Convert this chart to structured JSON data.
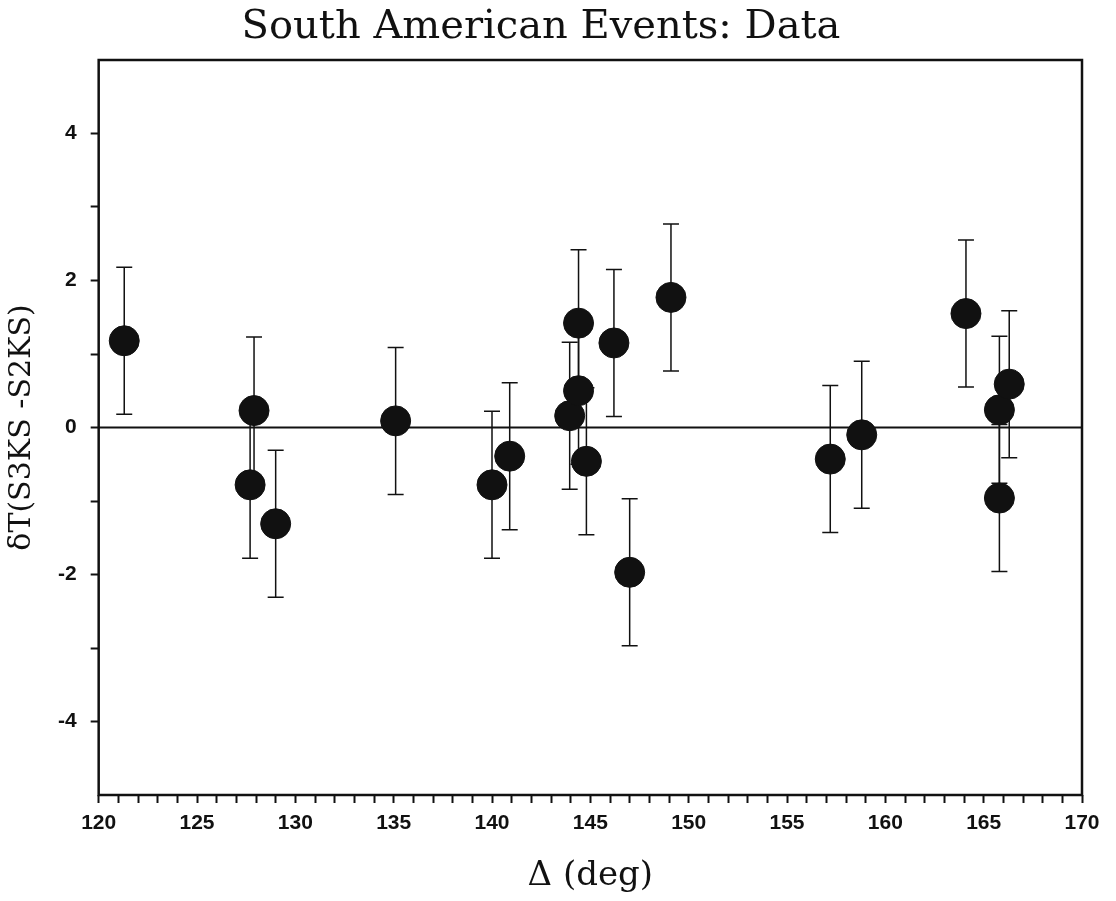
{
  "chart_data": {
    "type": "scatter",
    "title": "South American Events: Data",
    "xlabel": "Δ (deg)",
    "ylabel": "δT(S3KS -S2KS)",
    "x": [
      121.3,
      127.9,
      127.7,
      129.0,
      135.1,
      140.0,
      140.9,
      143.95,
      144.4,
      144.4,
      144.8,
      146.2,
      147.0,
      149.1,
      157.2,
      158.8,
      164.1,
      165.8,
      165.8,
      166.3
    ],
    "values": [
      1.18,
      0.23,
      -0.78,
      -1.31,
      0.09,
      -0.78,
      -0.39,
      0.16,
      1.42,
      0.5,
      -0.46,
      1.15,
      -1.97,
      1.77,
      -0.43,
      -0.1,
      1.55,
      0.24,
      -0.96,
      0.59
    ],
    "errors": [
      1,
      1,
      1,
      1,
      1,
      1,
      1,
      1,
      1,
      1,
      1,
      1,
      1,
      1,
      1,
      1,
      1,
      1,
      1,
      1
    ],
    "color": "#111111",
    "marker": "circle",
    "xlim": [
      120,
      170
    ],
    "xticks": [
      120,
      {
        "value": 121,
        "label": null
      },
      {
        "value": 122,
        "label": null
      },
      {
        "value": 123,
        "label": null
      },
      {
        "value": 124,
        "label": null
      },
      125,
      {
        "value": 126,
        "label": null
      },
      {
        "value": 127,
        "label": null
      },
      {
        "value": 128,
        "label": null
      },
      {
        "value": 129,
        "label": null
      },
      130,
      {
        "value": 131,
        "label": null
      },
      {
        "value": 132,
        "label": null
      },
      {
        "value": 133,
        "label": null
      },
      {
        "value": 134,
        "label": null
      },
      135,
      {
        "value": 136,
        "label": null
      },
      {
        "value": 137,
        "label": null
      },
      {
        "value": 138,
        "label": null
      },
      {
        "value": 139,
        "label": null
      },
      140,
      {
        "value": 141,
        "label": null
      },
      {
        "value": 142,
        "label": null
      },
      {
        "value": 143,
        "label": null
      },
      {
        "value": 144,
        "label": null
      },
      145,
      {
        "value": 146,
        "label": null
      },
      {
        "value": 147,
        "label": null
      },
      {
        "value": 148,
        "label": null
      },
      {
        "value": 149,
        "label": null
      },
      150,
      {
        "value": 151,
        "label": null
      },
      {
        "value": 152,
        "label": null
      },
      {
        "value": 153,
        "label": null
      },
      {
        "value": 154,
        "label": null
      },
      155,
      {
        "value": 156,
        "label": null
      },
      {
        "value": 157,
        "label": null
      },
      {
        "value": 158,
        "label": null
      },
      {
        "value": 159,
        "label": null
      },
      160,
      {
        "value": 161,
        "label": null
      },
      {
        "value": 162,
        "label": null
      },
      {
        "value": 163,
        "label": null
      },
      {
        "value": 164,
        "label": null
      },
      165,
      {
        "value": 166,
        "label": null
      },
      {
        "value": 167,
        "label": null
      },
      {
        "value": 168,
        "label": null
      },
      {
        "value": 169,
        "label": null
      },
      170
    ],
    "ylim": [
      -5,
      5
    ],
    "yticks": [
      -4,
      {
        "value": -3,
        "label": null
      },
      -2,
      {
        "value": -1,
        "label": null
      },
      0,
      {
        "value": 1,
        "label": null
      },
      2,
      {
        "value": 3,
        "label": null
      },
      4
    ],
    "ref_lines": [
      {
        "axis": "y",
        "value": 0,
        "color": "#111111"
      }
    ],
    "grid": false,
    "legend": false
  }
}
